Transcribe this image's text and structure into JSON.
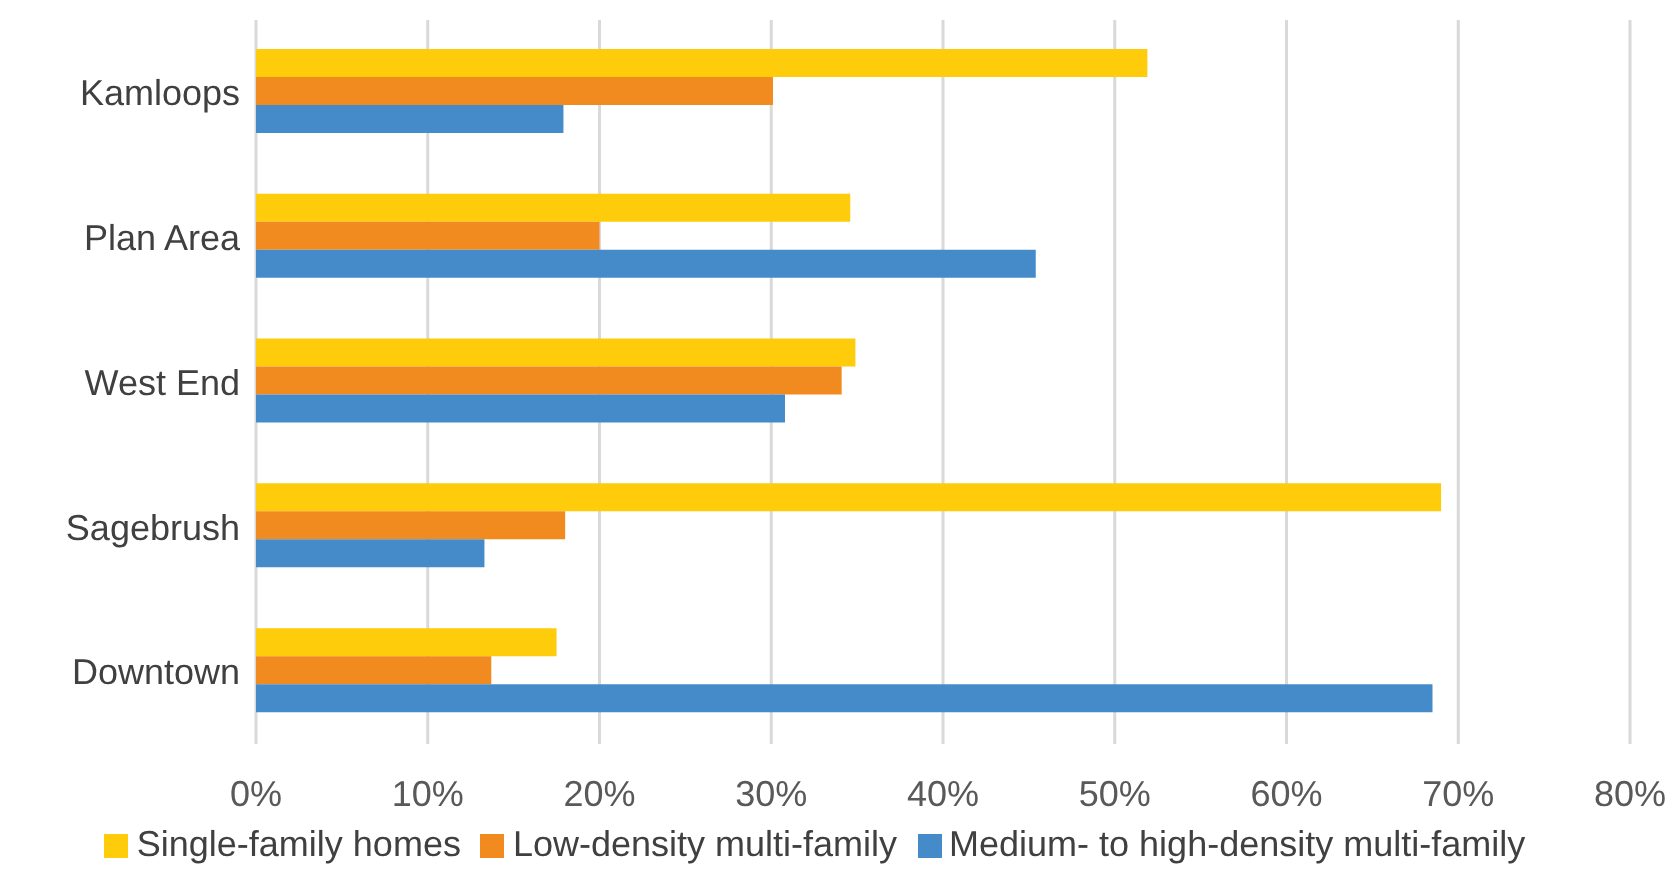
{
  "chart_data": {
    "type": "bar",
    "orientation": "horizontal",
    "categories": [
      "Kamloops",
      "Plan Area",
      "West End",
      "Sagebrush",
      "Downtown"
    ],
    "series": [
      {
        "name": "Single-family homes",
        "color": "#fecc0a",
        "values": [
          51.9,
          34.6,
          34.9,
          69.0,
          17.5
        ]
      },
      {
        "name": "Low-density multi-family",
        "color": "#f28b1f",
        "values": [
          30.1,
          20.0,
          34.1,
          18.0,
          13.7
        ]
      },
      {
        "name": "Medium- to high-density multi-family",
        "color": "#458bca",
        "values": [
          17.9,
          45.4,
          30.8,
          13.3,
          68.5
        ]
      }
    ],
    "xlim": [
      0,
      80
    ],
    "xticks": [
      {
        "value": 0,
        "label": "0%"
      },
      {
        "value": 10,
        "label": "10%"
      },
      {
        "value": 20,
        "label": "20%"
      },
      {
        "value": 30,
        "label": "30%"
      },
      {
        "value": 40,
        "label": "40%"
      },
      {
        "value": 50,
        "label": "50%"
      },
      {
        "value": 60,
        "label": "60%"
      },
      {
        "value": 70,
        "label": "70%"
      },
      {
        "value": 80,
        "label": "80%"
      }
    ],
    "grid": "x",
    "legend": "bottom"
  }
}
